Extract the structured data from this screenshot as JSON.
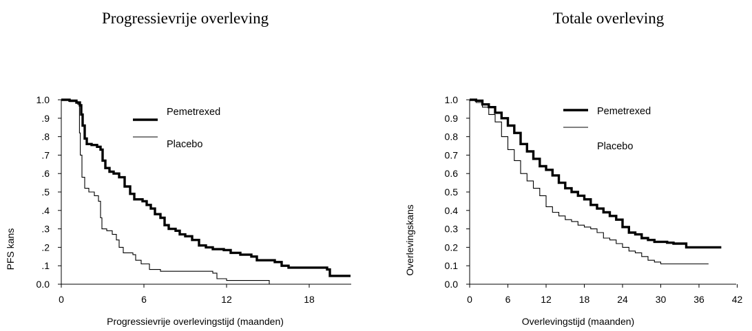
{
  "chart_data": [
    {
      "type": "line",
      "title": "Progressievrije overleving",
      "xlabel": "Progressievrije overlevingstijd (maanden)",
      "ylabel": "PFS kans",
      "xlim": [
        0,
        21
      ],
      "ylim": [
        0,
        1
      ],
      "x_ticks": [
        0,
        6,
        12,
        18
      ],
      "y_ticks": [
        0,
        0.1,
        0.2,
        0.3,
        0.4,
        0.5,
        0.6,
        0.7,
        0.8,
        0.9,
        1.0
      ],
      "y_tick_labels": [
        "0.0",
        ".1",
        ".2",
        ".3",
        ".4",
        ".5",
        ".6",
        ".7",
        ".8",
        ".9",
        "1.0"
      ],
      "grid": false,
      "legend": "top-center",
      "series": [
        {
          "name": "Pemetrexed",
          "style": "thick",
          "points": [
            [
              0,
              1.0
            ],
            [
              0.6,
              0.995
            ],
            [
              1.1,
              0.985
            ],
            [
              1.35,
              0.97
            ],
            [
              1.45,
              0.92
            ],
            [
              1.55,
              0.86
            ],
            [
              1.7,
              0.79
            ],
            [
              1.85,
              0.76
            ],
            [
              2.2,
              0.755
            ],
            [
              2.6,
              0.745
            ],
            [
              2.85,
              0.73
            ],
            [
              3.0,
              0.67
            ],
            [
              3.2,
              0.63
            ],
            [
              3.5,
              0.61
            ],
            [
              3.8,
              0.6
            ],
            [
              4.2,
              0.58
            ],
            [
              4.6,
              0.53
            ],
            [
              5.0,
              0.49
            ],
            [
              5.3,
              0.46
            ],
            [
              5.9,
              0.45
            ],
            [
              6.2,
              0.43
            ],
            [
              6.5,
              0.41
            ],
            [
              6.8,
              0.38
            ],
            [
              7.2,
              0.36
            ],
            [
              7.5,
              0.32
            ],
            [
              7.8,
              0.3
            ],
            [
              8.3,
              0.29
            ],
            [
              8.6,
              0.27
            ],
            [
              9.0,
              0.26
            ],
            [
              9.5,
              0.24
            ],
            [
              10.0,
              0.21
            ],
            [
              10.5,
              0.2
            ],
            [
              11.0,
              0.19
            ],
            [
              11.8,
              0.185
            ],
            [
              12.3,
              0.17
            ],
            [
              13.0,
              0.16
            ],
            [
              13.8,
              0.15
            ],
            [
              14.2,
              0.13
            ],
            [
              15.5,
              0.12
            ],
            [
              16.0,
              0.1
            ],
            [
              16.5,
              0.09
            ],
            [
              19.3,
              0.08
            ],
            [
              19.5,
              0.045
            ],
            [
              21.0,
              0.045
            ]
          ]
        },
        {
          "name": "Placebo",
          "style": "thin",
          "points": [
            [
              0,
              1.0
            ],
            [
              0.6,
              0.99
            ],
            [
              1.2,
              0.975
            ],
            [
              1.32,
              0.82
            ],
            [
              1.38,
              0.7
            ],
            [
              1.5,
              0.58
            ],
            [
              1.7,
              0.52
            ],
            [
              2.0,
              0.5
            ],
            [
              2.4,
              0.48
            ],
            [
              2.7,
              0.45
            ],
            [
              2.85,
              0.36
            ],
            [
              2.95,
              0.3
            ],
            [
              3.3,
              0.29
            ],
            [
              3.7,
              0.27
            ],
            [
              4.0,
              0.24
            ],
            [
              4.2,
              0.2
            ],
            [
              4.5,
              0.17
            ],
            [
              5.2,
              0.16
            ],
            [
              5.4,
              0.13
            ],
            [
              5.8,
              0.11
            ],
            [
              6.4,
              0.08
            ],
            [
              7.2,
              0.07
            ],
            [
              11.0,
              0.06
            ],
            [
              11.3,
              0.03
            ],
            [
              12.0,
              0.02
            ],
            [
              15.1,
              0.02
            ],
            [
              15.1,
              0.0
            ]
          ]
        }
      ]
    },
    {
      "type": "line",
      "title": "Totale overleving",
      "xlabel": "Overlevingstijd (maanden)",
      "ylabel": "Overlevingskans",
      "xlim": [
        0,
        42
      ],
      "ylim": [
        0,
        1
      ],
      "x_ticks": [
        0,
        6,
        12,
        18,
        24,
        30,
        36,
        42
      ],
      "y_ticks": [
        0,
        0.1,
        0.2,
        0.3,
        0.4,
        0.5,
        0.6,
        0.7,
        0.8,
        0.9,
        1.0
      ],
      "y_tick_labels": [
        "0.0",
        "0.1",
        "0.2",
        "0.3",
        "0.4",
        "0.5",
        "0.6",
        "0.7",
        "0.8",
        "0.9",
        "1.0"
      ],
      "grid": false,
      "legend": "top-center",
      "series": [
        {
          "name": "Pemetrexed",
          "style": "thick",
          "points": [
            [
              0,
              1.0
            ],
            [
              1,
              0.995
            ],
            [
              2,
              0.975
            ],
            [
              3,
              0.96
            ],
            [
              4,
              0.93
            ],
            [
              5,
              0.9
            ],
            [
              6,
              0.86
            ],
            [
              7,
              0.82
            ],
            [
              8,
              0.76
            ],
            [
              9,
              0.72
            ],
            [
              10,
              0.68
            ],
            [
              11,
              0.64
            ],
            [
              12,
              0.62
            ],
            [
              13,
              0.59
            ],
            [
              14,
              0.55
            ],
            [
              15,
              0.52
            ],
            [
              16,
              0.5
            ],
            [
              17,
              0.48
            ],
            [
              18,
              0.46
            ],
            [
              19,
              0.43
            ],
            [
              20,
              0.41
            ],
            [
              21,
              0.39
            ],
            [
              22,
              0.37
            ],
            [
              23,
              0.35
            ],
            [
              24,
              0.31
            ],
            [
              25,
              0.28
            ],
            [
              26,
              0.27
            ],
            [
              27,
              0.25
            ],
            [
              28,
              0.24
            ],
            [
              29,
              0.23
            ],
            [
              31,
              0.225
            ],
            [
              32,
              0.22
            ],
            [
              33.5,
              0.22
            ],
            [
              34,
              0.2
            ],
            [
              39,
              0.2
            ],
            [
              39.5,
              0.2
            ]
          ]
        },
        {
          "name": "Placebo",
          "style": "thin",
          "points": [
            [
              0,
              1.0
            ],
            [
              1,
              0.985
            ],
            [
              2,
              0.96
            ],
            [
              3,
              0.92
            ],
            [
              4,
              0.88
            ],
            [
              5,
              0.8
            ],
            [
              6,
              0.73
            ],
            [
              7,
              0.67
            ],
            [
              8,
              0.6
            ],
            [
              9,
              0.56
            ],
            [
              10,
              0.52
            ],
            [
              11,
              0.48
            ],
            [
              12,
              0.42
            ],
            [
              13,
              0.39
            ],
            [
              14,
              0.37
            ],
            [
              15,
              0.35
            ],
            [
              16,
              0.34
            ],
            [
              17,
              0.32
            ],
            [
              18,
              0.31
            ],
            [
              19,
              0.3
            ],
            [
              20,
              0.28
            ],
            [
              21,
              0.25
            ],
            [
              22,
              0.24
            ],
            [
              23,
              0.22
            ],
            [
              24,
              0.2
            ],
            [
              25,
              0.18
            ],
            [
              26,
              0.17
            ],
            [
              27,
              0.15
            ],
            [
              28,
              0.13
            ],
            [
              29,
              0.12
            ],
            [
              30,
              0.11
            ],
            [
              36,
              0.11
            ],
            [
              37.5,
              0.11
            ]
          ]
        }
      ]
    }
  ]
}
